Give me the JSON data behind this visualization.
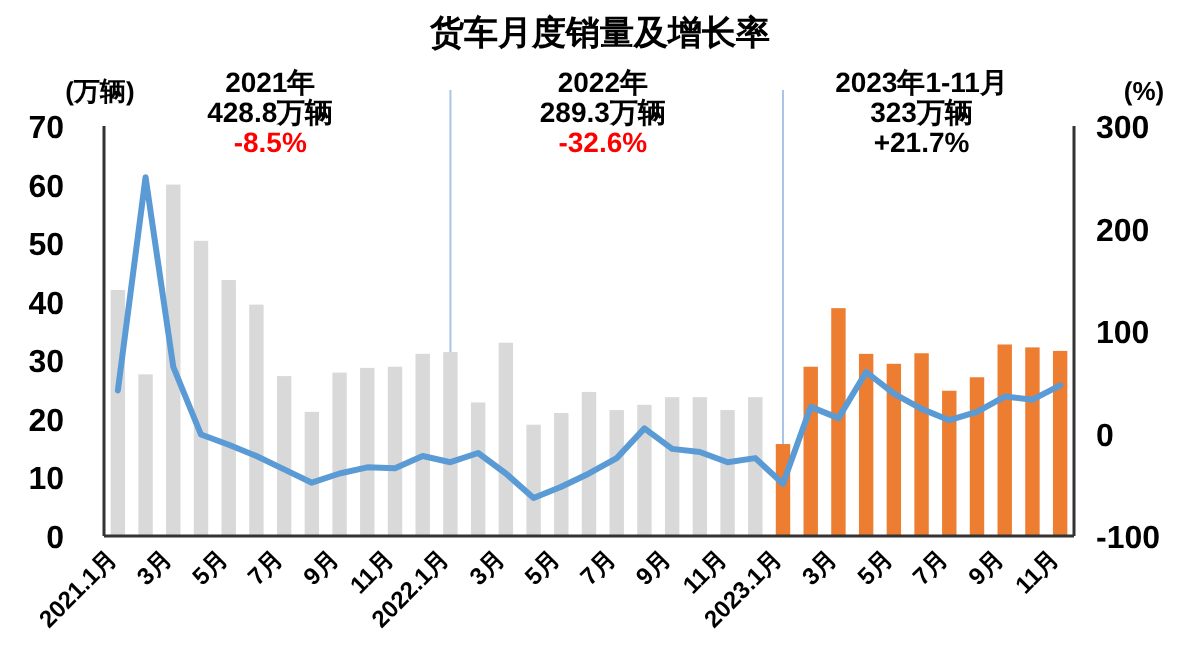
{
  "chart_data": {
    "type": "bar",
    "title": "货车月度销量及增长率",
    "ylabel": "(万辆)",
    "y2label": "(%)",
    "categories": [
      "2021.1月",
      null,
      "3月",
      null,
      "5月",
      null,
      "7月",
      null,
      "9月",
      null,
      "11月",
      null,
      "2022.1月",
      null,
      "3月",
      null,
      "5月",
      null,
      "7月",
      null,
      "9月",
      null,
      "11月",
      null,
      "2023.1月",
      null,
      "3月",
      null,
      "5月",
      null,
      "7月",
      null,
      "9月",
      null,
      "11月"
    ],
    "series": [
      {
        "colors": [
          "#d9d9d9",
          "#d9d9d9",
          "#d9d9d9",
          "#d9d9d9",
          "#d9d9d9",
          "#d9d9d9",
          "#d9d9d9",
          "#d9d9d9",
          "#d9d9d9",
          "#d9d9d9",
          "#d9d9d9",
          "#d9d9d9",
          "#d9d9d9",
          "#d9d9d9",
          "#d9d9d9",
          "#d9d9d9",
          "#d9d9d9",
          "#d9d9d9",
          "#d9d9d9",
          "#d9d9d9",
          "#d9d9d9",
          "#d9d9d9",
          "#d9d9d9",
          "#d9d9d9",
          "#ed7d31",
          "#ed7d31",
          "#ed7d31",
          "#ed7d31",
          "#ed7d31",
          "#ed7d31",
          "#ed7d31",
          "#ed7d31",
          "#ed7d31",
          "#ed7d31",
          "#ed7d31"
        ],
        "values": [
          42,
          27.6,
          60,
          50.4,
          43.7,
          39.5,
          27.3,
          21.2,
          27.9,
          28.7,
          28.9,
          31.1,
          31.4,
          22.8,
          33,
          19,
          21,
          24.6,
          21.5,
          22.4,
          23.7,
          23.7,
          21.5,
          23.7,
          15.7,
          28.9,
          38.9,
          31.1,
          29.4,
          31.2,
          24.8,
          27.1,
          32.7,
          32.2,
          31.6
        ]
      },
      {
        "type": "line",
        "axis": "y2",
        "color": "#5b9bd5",
        "marker": "none",
        "line_style": "solid",
        "values": [
          42,
          250,
          65,
          -1,
          -11,
          -22,
          -35,
          -48,
          -39,
          -33,
          -34,
          -22,
          -28,
          -19,
          -39,
          -63,
          -52,
          -39,
          -24,
          5,
          -15,
          -18,
          -28,
          -24,
          -49,
          26,
          15,
          60,
          39,
          24,
          13,
          21,
          36,
          33,
          47
        ]
      }
    ],
    "ylim": [
      0,
      70
    ],
    "yticks": [
      0,
      10,
      20,
      30,
      40,
      50,
      60,
      70
    ],
    "y2lim": [
      -100,
      300
    ],
    "y2ticks": [
      -100,
      0,
      100,
      200,
      300
    ],
    "ref_lines": [
      {
        "axis": "x",
        "value": "2022.1月",
        "color": "#a9c4e4"
      },
      {
        "axis": "x",
        "value": "2023.1月",
        "color": "#a9c4e4"
      }
    ],
    "annotations": [
      "2021年",
      "428.8万辆",
      "-8.5%",
      "2022年",
      "289.3万辆",
      "-32.6%",
      "2023年1-11月",
      "323万辆",
      "+21.7%"
    ],
    "grid": false
  }
}
